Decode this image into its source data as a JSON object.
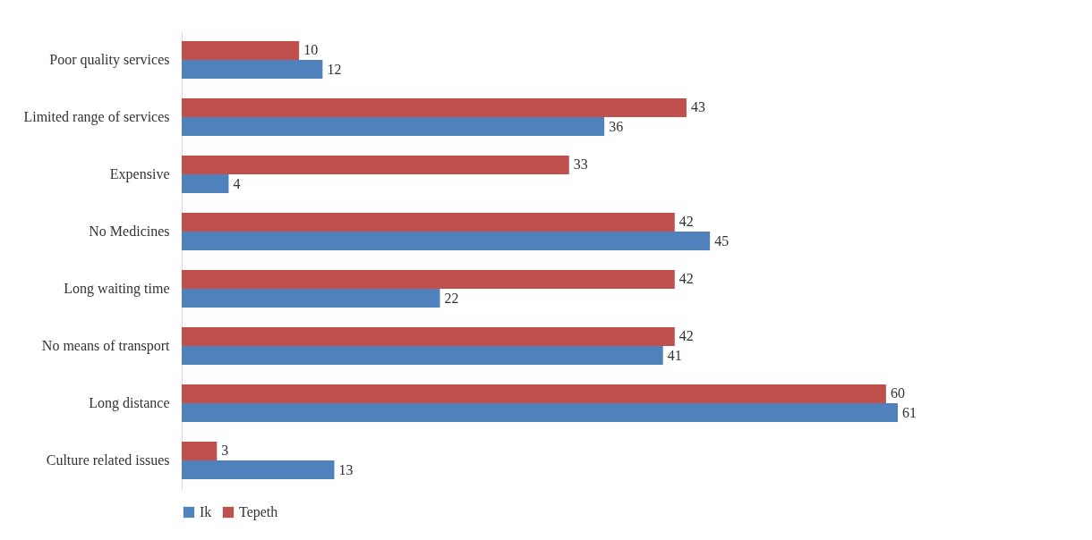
{
  "chart_data": {
    "type": "bar",
    "orientation": "horizontal",
    "categories": [
      "Poor quality services",
      "Limited range of services",
      "Expensive",
      "No Medicines",
      "Long waiting time",
      "No means of transport",
      "Long distance",
      "Culture related issues"
    ],
    "series": [
      {
        "name": "Ik",
        "color": "#4f81bd",
        "values": [
          12,
          36,
          4,
          45,
          22,
          41,
          61,
          13
        ]
      },
      {
        "name": "Tepeth",
        "color": "#c0504d",
        "values": [
          10,
          43,
          33,
          42,
          42,
          42,
          60,
          3
        ]
      }
    ],
    "data_labels": true,
    "legend": "bottom",
    "grid": false
  }
}
